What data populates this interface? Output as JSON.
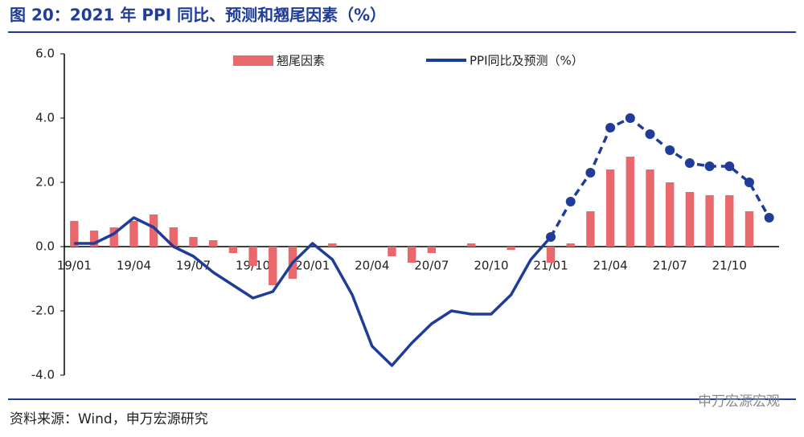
{
  "chart_data": {
    "type": "bar-line",
    "title": "图 20：2021 年 PPI 同比、预测和翘尾因素（%）",
    "source": "资料来源：Wind，申万宏源研究",
    "watermark": "申万宏源宏观",
    "categories": [
      "19/01",
      null,
      null,
      "19/04",
      null,
      null,
      "19/07",
      null,
      null,
      "19/10",
      null,
      null,
      "20/01",
      null,
      null,
      "20/04",
      null,
      null,
      "20/07",
      null,
      null,
      "20/10",
      null,
      null,
      "21/01",
      null,
      null,
      "21/04",
      null,
      null,
      "21/07",
      null,
      null,
      "21/10",
      null,
      null
    ],
    "series": [
      {
        "name": "翘尾因素",
        "type": "bar",
        "color": "#e8686b",
        "values": [
          0.8,
          0.5,
          0.6,
          0.8,
          1.0,
          0.6,
          0.3,
          0.2,
          -0.2,
          -0.6,
          -1.2,
          -1.0,
          0.0,
          0.1,
          0.0,
          0.0,
          -0.3,
          -0.5,
          -0.2,
          0.0,
          0.1,
          0.0,
          -0.1,
          0.0,
          -0.5,
          0.1,
          1.1,
          2.4,
          2.8,
          2.4,
          2.0,
          1.7,
          1.6,
          1.6,
          1.1,
          0.0
        ]
      },
      {
        "name": "PPI同比及预测（%）",
        "type": "line",
        "color": "#1f3c99",
        "values": [
          0.1,
          0.1,
          0.4,
          0.9,
          0.6,
          0.0,
          -0.3,
          -0.8,
          -1.2,
          -1.6,
          -1.4,
          -0.5,
          0.1,
          -0.4,
          -1.5,
          -3.1,
          -3.7,
          -3.0,
          -2.4,
          -2.0,
          -2.1,
          -2.1,
          -1.5,
          -0.4,
          0.3,
          null,
          null,
          null,
          null,
          null,
          null,
          null,
          null,
          null,
          null,
          null
        ]
      },
      {
        "type": "line",
        "color": "#1f3c99",
        "dashed": true,
        "markers": true,
        "values": [
          null,
          null,
          null,
          null,
          null,
          null,
          null,
          null,
          null,
          null,
          null,
          null,
          null,
          null,
          null,
          null,
          null,
          null,
          null,
          null,
          null,
          null,
          null,
          null,
          0.3,
          1.4,
          2.3,
          3.7,
          4.0,
          3.5,
          3.0,
          2.6,
          2.5,
          2.5,
          2.0,
          0.9
        ]
      }
    ],
    "ylim": [
      -4,
      6
    ],
    "yticks": [
      {
        "value": -4,
        "label": "-4.0"
      },
      {
        "value": -2,
        "label": "-2.0"
      },
      {
        "value": 0,
        "label": "0.0"
      },
      {
        "value": 2,
        "label": "2.0"
      },
      {
        "value": 4,
        "label": "4.0"
      },
      {
        "value": 6,
        "label": "6.0"
      }
    ],
    "grid": false
  }
}
